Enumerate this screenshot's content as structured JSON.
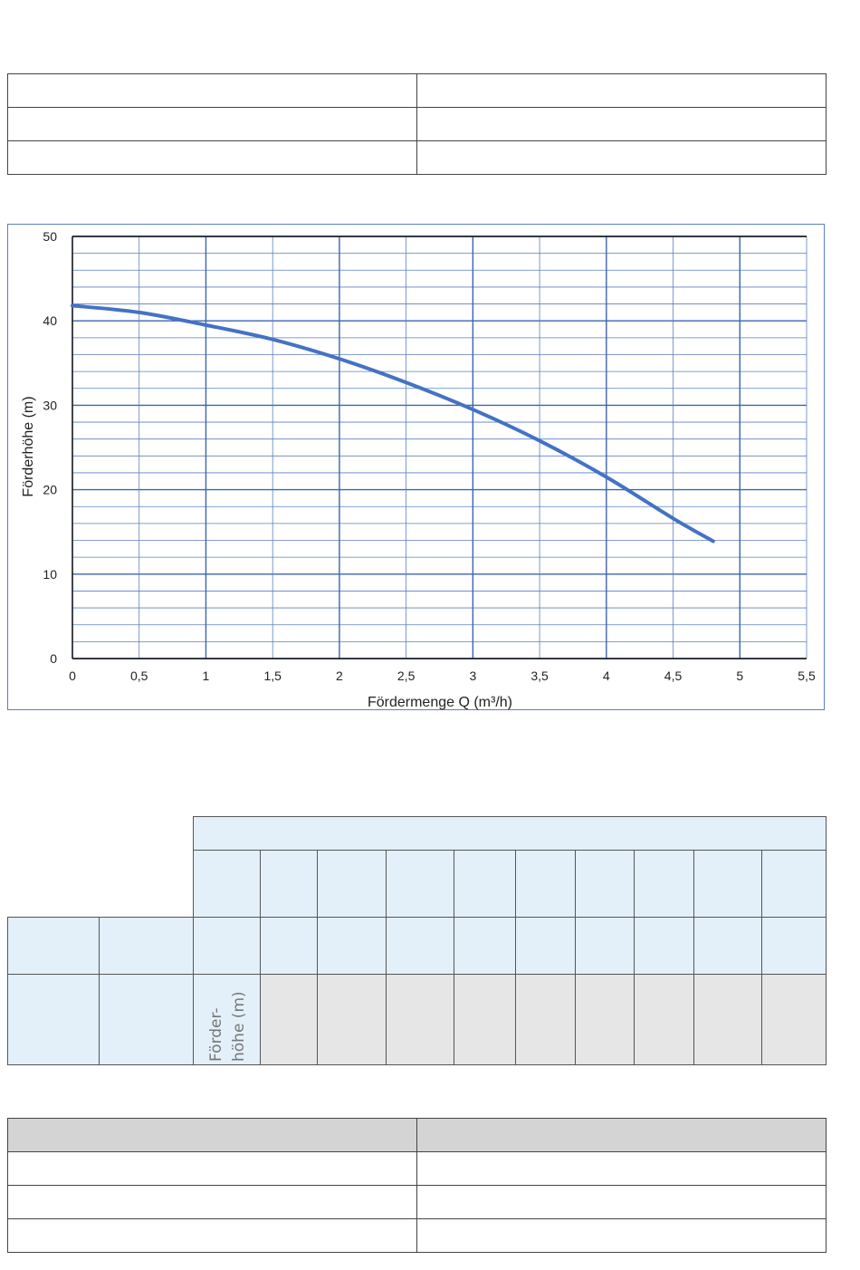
{
  "chart_data": {
    "type": "line",
    "title": "",
    "xlabel": "Fördermenge Q (m³/h)",
    "ylabel": "Förderhöhe (m)",
    "xlim": [
      0,
      5.5
    ],
    "ylim": [
      0,
      50
    ],
    "x_ticks": [
      "0",
      "0,5",
      "1",
      "1,5",
      "2",
      "2,5",
      "3",
      "3,5",
      "4",
      "4,5",
      "5",
      "5,5"
    ],
    "y_ticks": [
      "0",
      "10",
      "20",
      "30",
      "40",
      "50"
    ],
    "grid": true,
    "series": [
      {
        "color": "#4472c4",
        "x": [
          0,
          0.5,
          1,
          1.5,
          2,
          2.5,
          3,
          3.5,
          4,
          4.5,
          4.8
        ],
        "y": [
          41.8,
          41.0,
          39.5,
          37.8,
          35.5,
          32.7,
          29.5,
          25.8,
          21.5,
          16.6,
          13.9
        ]
      }
    ]
  },
  "data_table": {
    "row_label": "Förder-\nhöhe (m)",
    "row_label_lines": [
      "Förder-",
      "höhe (m)"
    ]
  },
  "colors": {
    "header_blue": "#e3f0fa",
    "cell_grey": "#e6e6e6",
    "table_head_grey": "#d4d4d4",
    "curve": "#4472c4",
    "grid_blue": "#5b7fc0"
  }
}
